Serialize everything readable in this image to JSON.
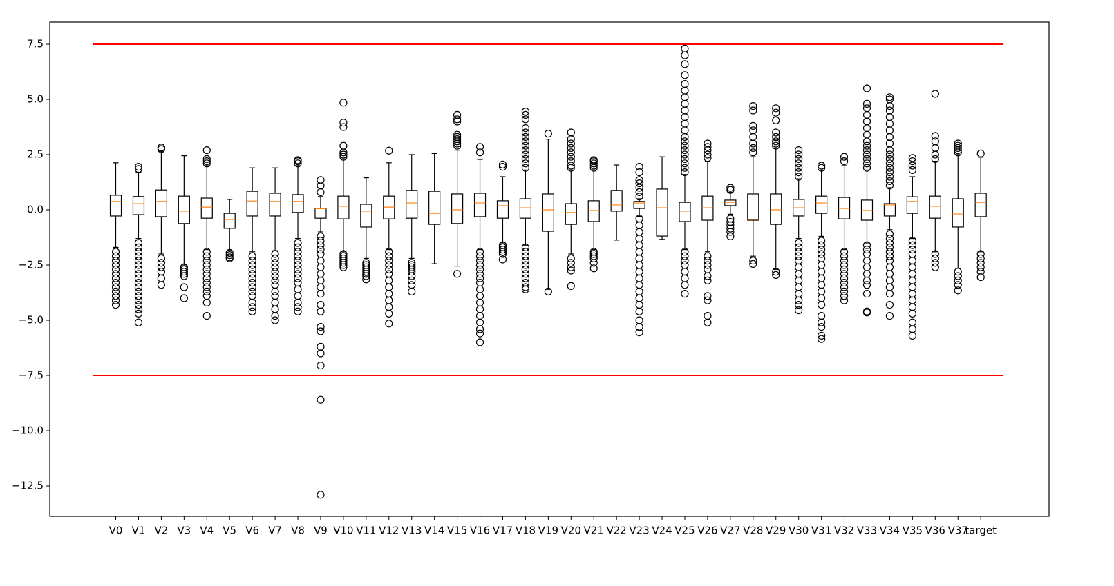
{
  "chart_data": {
    "type": "box",
    "categories": [
      "V0",
      "V1",
      "V2",
      "V3",
      "V4",
      "V5",
      "V6",
      "V7",
      "V8",
      "V9",
      "V10",
      "V11",
      "V12",
      "V13",
      "V14",
      "V15",
      "V16",
      "V17",
      "V18",
      "V19",
      "V20",
      "V21",
      "V22",
      "V23",
      "V24",
      "V25",
      "V26",
      "V27",
      "V28",
      "V29",
      "V30",
      "V31",
      "V32",
      "V33",
      "V34",
      "V35",
      "V36",
      "V37",
      "target"
    ],
    "boxes": [
      {
        "whislo": -1.7,
        "q1": -0.28,
        "med": 0.38,
        "q3": 0.66,
        "whishi": 2.13,
        "fliers": [
          -1.9,
          -2.1,
          -2.3,
          -2.5,
          -2.7,
          -2.9,
          -3.1,
          -3.3,
          -3.5,
          -3.7,
          -3.9,
          -4.1,
          -4.3
        ]
      },
      {
        "whislo": -1.3,
        "q1": -0.22,
        "med": 0.28,
        "q3": 0.6,
        "whishi": 1.7,
        "fliers": [
          1.85,
          1.95,
          -1.5,
          -1.7,
          -1.9,
          -2.1,
          -2.3,
          -2.5,
          -2.7,
          -2.9,
          -3.1,
          -3.3,
          -3.5,
          -3.7,
          -3.9,
          -4.1,
          -4.3,
          -4.5,
          -4.7,
          -5.1
        ]
      },
      {
        "whislo": -2.0,
        "q1": -0.31,
        "med": 0.38,
        "q3": 0.9,
        "whishi": 2.65,
        "fliers": [
          2.75,
          2.82,
          -2.2,
          -2.4,
          -2.6,
          -2.8,
          -3.1,
          -3.4
        ]
      },
      {
        "whislo": -2.5,
        "q1": -0.62,
        "med": -0.06,
        "q3": 0.62,
        "whishi": 2.45,
        "fliers": [
          -2.6,
          -2.7,
          -2.8,
          -2.9,
          -3.0,
          -3.5,
          -4.0
        ]
      },
      {
        "whislo": -1.8,
        "q1": -0.38,
        "med": 0.12,
        "q3": 0.53,
        "whishi": 2.0,
        "fliers": [
          2.1,
          2.2,
          2.3,
          2.7,
          -1.9,
          -2.1,
          -2.3,
          -2.5,
          -2.7,
          -2.9,
          -3.1,
          -3.3,
          -3.5,
          -3.7,
          -3.9,
          -4.2,
          -4.8
        ]
      },
      {
        "whislo": -1.85,
        "q1": -0.84,
        "med": -0.44,
        "q3": -0.16,
        "whishi": 0.47,
        "fliers": [
          -1.95,
          -2.05,
          -2.15,
          -2.2
        ]
      },
      {
        "whislo": -1.9,
        "q1": -0.28,
        "med": 0.4,
        "q3": 0.84,
        "whishi": 1.9,
        "fliers": [
          -2.1,
          -2.3,
          -2.5,
          -2.7,
          -2.9,
          -3.1,
          -3.3,
          -3.5,
          -3.7,
          -3.9,
          -4.2,
          -4.4,
          -4.6
        ]
      },
      {
        "whislo": -1.85,
        "q1": -0.28,
        "med": 0.38,
        "q3": 0.75,
        "whishi": 1.9,
        "fliers": [
          -2.0,
          -2.2,
          -2.4,
          -2.6,
          -2.8,
          -3.0,
          -3.2,
          -3.4,
          -3.7,
          -3.9,
          -4.2,
          -4.5,
          -4.8,
          -5.0
        ]
      },
      {
        "whislo": -1.3,
        "q1": -0.12,
        "med": 0.38,
        "q3": 0.69,
        "whishi": 2.0,
        "fliers": [
          2.1,
          2.2,
          2.25,
          -1.5,
          -1.7,
          -1.9,
          -2.1,
          -2.3,
          -2.5,
          -2.7,
          -2.9,
          -3.1,
          -3.3,
          -3.6,
          -3.9,
          -4.2,
          -4.4,
          -4.6
        ]
      },
      {
        "whislo": -1.0,
        "q1": -0.38,
        "med": 0.05,
        "q3": 0.06,
        "whishi": 0.6,
        "fliers": [
          0.8,
          1.1,
          1.35,
          -1.2,
          -1.4,
          -1.6,
          -1.8,
          -2.0,
          -2.3,
          -2.6,
          -2.9,
          -3.2,
          -3.5,
          -3.8,
          -4.3,
          -4.6,
          -5.3,
          -5.5,
          -6.2,
          -6.5,
          -7.05,
          -8.6,
          -12.9
        ]
      },
      {
        "whislo": -1.9,
        "q1": -0.41,
        "med": 0.16,
        "q3": 0.62,
        "whishi": 2.3,
        "fliers": [
          2.4,
          2.5,
          2.6,
          2.9,
          3.75,
          3.95,
          4.85,
          -2.0,
          -2.1,
          -2.2,
          -2.3,
          -2.4,
          -2.5,
          -2.6
        ]
      },
      {
        "whislo": -2.2,
        "q1": -0.78,
        "med": -0.06,
        "q3": 0.25,
        "whishi": 1.45,
        "fliers": [
          -2.4,
          -2.5,
          -2.6,
          -2.7,
          -2.8,
          -2.9,
          -3.0,
          -3.15
        ]
      },
      {
        "whislo": -1.8,
        "q1": -0.41,
        "med": 0.12,
        "q3": 0.62,
        "whishi": 2.13,
        "fliers": [
          2.68,
          -1.9,
          -2.1,
          -2.3,
          -2.5,
          -2.7,
          -2.9,
          -3.2,
          -3.5,
          -3.8,
          -4.1,
          -4.4,
          -4.7,
          -5.15
        ]
      },
      {
        "whislo": -2.2,
        "q1": -0.38,
        "med": 0.31,
        "q3": 0.88,
        "whishi": 2.5,
        "fliers": [
          -2.4,
          -2.5,
          -2.6,
          -2.7,
          -2.8,
          -3.0,
          -3.2,
          -3.4,
          -3.7
        ]
      },
      {
        "whislo": -2.44,
        "q1": -0.66,
        "med": -0.16,
        "q3": 0.84,
        "whishi": 2.55,
        "fliers": []
      },
      {
        "whislo": -2.55,
        "q1": -0.62,
        "med": 0.0,
        "q3": 0.72,
        "whishi": 2.7,
        "fliers": [
          2.9,
          3.0,
          3.1,
          3.2,
          3.3,
          3.4,
          4.0,
          4.1,
          4.3,
          -2.9
        ]
      },
      {
        "whislo": -1.8,
        "q1": -0.31,
        "med": 0.31,
        "q3": 0.75,
        "whishi": 2.28,
        "fliers": [
          2.6,
          2.85,
          -1.9,
          -2.1,
          -2.3,
          -2.5,
          -2.7,
          -2.9,
          -3.1,
          -3.3,
          -3.6,
          -3.9,
          -4.2,
          -4.5,
          -4.8,
          -5.1,
          -5.4,
          -5.6,
          -6.0
        ]
      },
      {
        "whislo": -1.5,
        "q1": -0.38,
        "med": 0.19,
        "q3": 0.41,
        "whishi": 1.5,
        "fliers": [
          1.95,
          2.05,
          -1.6,
          -1.7,
          -1.8,
          -1.9,
          -2.0,
          -2.25
        ]
      },
      {
        "whislo": -1.6,
        "q1": -0.38,
        "med": 0.09,
        "q3": 0.5,
        "whishi": 1.8,
        "fliers": [
          1.9,
          2.1,
          2.3,
          2.5,
          2.7,
          2.9,
          3.1,
          3.3,
          3.5,
          3.7,
          4.1,
          4.3,
          4.45,
          -1.7,
          -1.9,
          -2.1,
          -2.3,
          -2.5,
          -2.7,
          -2.9,
          -3.1,
          -3.3,
          -3.5,
          -3.6
        ]
      },
      {
        "whislo": -3.6,
        "q1": -0.97,
        "med": 0.0,
        "q3": 0.72,
        "whishi": 3.2,
        "fliers": [
          3.45,
          -3.7
        ]
      },
      {
        "whislo": -2.0,
        "q1": -0.66,
        "med": -0.12,
        "q3": 0.28,
        "whishi": 1.8,
        "fliers": [
          1.9,
          2.0,
          2.2,
          2.4,
          2.6,
          2.8,
          3.0,
          3.2,
          3.5,
          -2.2,
          -2.4,
          -2.6,
          -2.75,
          -3.45
        ]
      },
      {
        "whislo": -1.8,
        "q1": -0.53,
        "med": -0.03,
        "q3": 0.41,
        "whishi": 1.8,
        "fliers": [
          1.9,
          2.0,
          2.1,
          2.2,
          2.25,
          -1.9,
          -2.0,
          -2.1,
          -2.2,
          -2.4,
          -2.65
        ]
      },
      {
        "whislo": -1.37,
        "q1": -0.06,
        "med": 0.22,
        "q3": 0.88,
        "whishi": 2.03,
        "fliers": []
      },
      {
        "whislo": -0.3,
        "q1": 0.06,
        "med": 0.31,
        "q3": 0.38,
        "whishi": 0.5,
        "fliers": [
          0.6,
          0.8,
          1.0,
          1.2,
          1.35,
          1.7,
          1.95,
          -0.4,
          -0.7,
          -1.0,
          -1.3,
          -1.6,
          -1.9,
          -2.2,
          -2.5,
          -2.8,
          -3.1,
          -3.4,
          -3.7,
          -4.0,
          -4.3,
          -4.6,
          -5.0,
          -5.3,
          -5.55
        ]
      },
      {
        "whislo": -1.34,
        "q1": -1.19,
        "med": 0.09,
        "q3": 0.94,
        "whishi": 2.4,
        "fliers": []
      },
      {
        "whislo": -1.8,
        "q1": -0.53,
        "med": -0.06,
        "q3": 0.34,
        "whishi": 1.6,
        "fliers": [
          1.7,
          1.9,
          2.1,
          2.3,
          2.5,
          2.7,
          2.9,
          3.1,
          3.3,
          3.6,
          3.9,
          4.2,
          4.5,
          4.8,
          5.1,
          5.4,
          5.7,
          6.1,
          6.6,
          7.0,
          7.3,
          -1.9,
          -2.1,
          -2.3,
          -2.5,
          -2.8,
          -3.1,
          -3.4,
          -3.8
        ]
      },
      {
        "whislo": -1.9,
        "q1": -0.47,
        "med": 0.09,
        "q3": 0.62,
        "whishi": 2.2,
        "fliers": [
          2.35,
          2.5,
          2.7,
          2.85,
          3.0,
          -2.1,
          -2.3,
          -2.5,
          -2.7,
          -3.0,
          -3.2,
          -3.9,
          -4.1,
          -4.8,
          -5.1
        ]
      },
      {
        "whislo": -0.2,
        "q1": 0.19,
        "med": 0.34,
        "q3": 0.44,
        "whishi": 0.8,
        "fliers": [
          0.9,
          1.0,
          -0.4,
          -0.55,
          -0.7,
          -0.85,
          -1.0,
          -1.2
        ]
      },
      {
        "whislo": -2.1,
        "q1": -0.47,
        "med": -0.44,
        "q3": 0.72,
        "whishi": 2.4,
        "fliers": [
          2.6,
          2.8,
          3.0,
          3.3,
          3.6,
          3.8,
          4.5,
          4.7,
          -2.3,
          -2.45
        ]
      },
      {
        "whislo": -2.7,
        "q1": -0.66,
        "med": 0.0,
        "q3": 0.72,
        "whishi": 2.8,
        "fliers": [
          2.9,
          3.0,
          3.1,
          3.3,
          3.5,
          4.05,
          4.4,
          4.6,
          -2.8,
          -2.95
        ]
      },
      {
        "whislo": -1.3,
        "q1": -0.28,
        "med": 0.09,
        "q3": 0.47,
        "whishi": 1.4,
        "fliers": [
          1.5,
          1.7,
          1.9,
          2.1,
          2.3,
          2.5,
          2.7,
          -1.5,
          -1.7,
          -1.9,
          -2.1,
          -2.3,
          -2.6,
          -2.9,
          -3.2,
          -3.5,
          -3.8,
          -4.1,
          -4.3,
          -4.55
        ]
      },
      {
        "whislo": -1.2,
        "q1": -0.16,
        "med": 0.31,
        "q3": 0.62,
        "whishi": 1.8,
        "fliers": [
          1.9,
          2.0,
          -1.4,
          -1.6,
          -1.8,
          -2.0,
          -2.2,
          -2.5,
          -2.8,
          -3.1,
          -3.4,
          -3.7,
          -4.0,
          -4.3,
          -4.8,
          -5.1,
          -5.3,
          -5.7,
          -5.85
        ]
      },
      {
        "whislo": -1.8,
        "q1": -0.41,
        "med": 0.06,
        "q3": 0.56,
        "whishi": 2.0,
        "fliers": [
          2.2,
          2.4,
          -1.9,
          -2.1,
          -2.3,
          -2.5,
          -2.7,
          -2.9,
          -3.1,
          -3.3,
          -3.5,
          -3.7,
          -3.9,
          -4.1
        ]
      },
      {
        "whislo": -1.5,
        "q1": -0.47,
        "med": -0.03,
        "q3": 0.44,
        "whishi": 1.8,
        "fliers": [
          1.9,
          2.1,
          2.3,
          2.5,
          2.7,
          2.9,
          3.1,
          3.4,
          3.7,
          4.0,
          4.3,
          4.6,
          4.8,
          5.5,
          -1.6,
          -1.8,
          -2.0,
          -2.3,
          -2.6,
          -2.9,
          -3.2,
          -3.4,
          -3.8,
          -4.6,
          -4.65
        ]
      },
      {
        "whislo": -0.9,
        "q1": -0.28,
        "med": 0.22,
        "q3": 0.28,
        "whishi": 1.0,
        "fliers": [
          1.1,
          1.3,
          1.5,
          1.7,
          1.9,
          2.1,
          2.3,
          2.5,
          2.7,
          3.0,
          3.3,
          3.6,
          3.9,
          4.2,
          4.5,
          4.7,
          5.0,
          5.1,
          -1.1,
          -1.3,
          -1.5,
          -1.7,
          -1.9,
          -2.1,
          -2.3,
          -2.6,
          -2.9,
          -3.2,
          -3.5,
          -3.8,
          -4.3,
          -4.8
        ]
      },
      {
        "whislo": -1.3,
        "q1": -0.16,
        "med": 0.38,
        "q3": 0.59,
        "whishi": 1.5,
        "fliers": [
          1.8,
          2.0,
          2.2,
          2.35,
          -1.4,
          -1.6,
          -1.8,
          -2.0,
          -2.3,
          -2.6,
          -2.9,
          -3.2,
          -3.5,
          -3.8,
          -4.1,
          -4.4,
          -4.7,
          -5.1,
          -5.4,
          -5.7
        ]
      },
      {
        "whislo": -1.9,
        "q1": -0.38,
        "med": 0.16,
        "q3": 0.62,
        "whishi": 2.2,
        "fliers": [
          2.3,
          2.5,
          2.8,
          3.1,
          3.35,
          5.25,
          -2.0,
          -2.2,
          -2.4,
          -2.6
        ]
      },
      {
        "whislo": -2.65,
        "q1": -0.78,
        "med": -0.19,
        "q3": 0.5,
        "whishi": 2.5,
        "fliers": [
          2.6,
          2.7,
          2.8,
          2.9,
          3.0,
          -2.8,
          -3.0,
          -3.2,
          -3.4,
          -3.65
        ]
      },
      {
        "whislo": -1.9,
        "q1": -0.31,
        "med": 0.34,
        "q3": 0.75,
        "whishi": 2.38,
        "fliers": [
          2.55,
          -2.0,
          -2.2,
          -2.4,
          -2.6,
          -2.8,
          -3.05
        ]
      }
    ],
    "hlines": [
      {
        "y": 7.5,
        "xmin": 0,
        "xmax": 40,
        "color": "red"
      },
      {
        "y": -7.5,
        "xmin": 0,
        "xmax": 40,
        "color": "red"
      }
    ],
    "box_color": "#000000",
    "median_color": "#ff7f0e",
    "xlim": [
      -1.9,
      42
    ],
    "ylim": [
      -13.875,
      8.5
    ],
    "yticks": [
      7.5,
      {
        "value": 5,
        "label": "5.0"
      },
      2.5,
      {
        "value": 0,
        "label": "0.0"
      },
      {
        "value": -2.5,
        "label": "−2.5"
      },
      {
        "value": -5,
        "label": "−5.0"
      },
      {
        "value": -7.5,
        "label": "−7.5"
      },
      {
        "value": -10,
        "label": "−10.0"
      },
      {
        "value": -12.5,
        "label": "−12.5"
      }
    ]
  }
}
